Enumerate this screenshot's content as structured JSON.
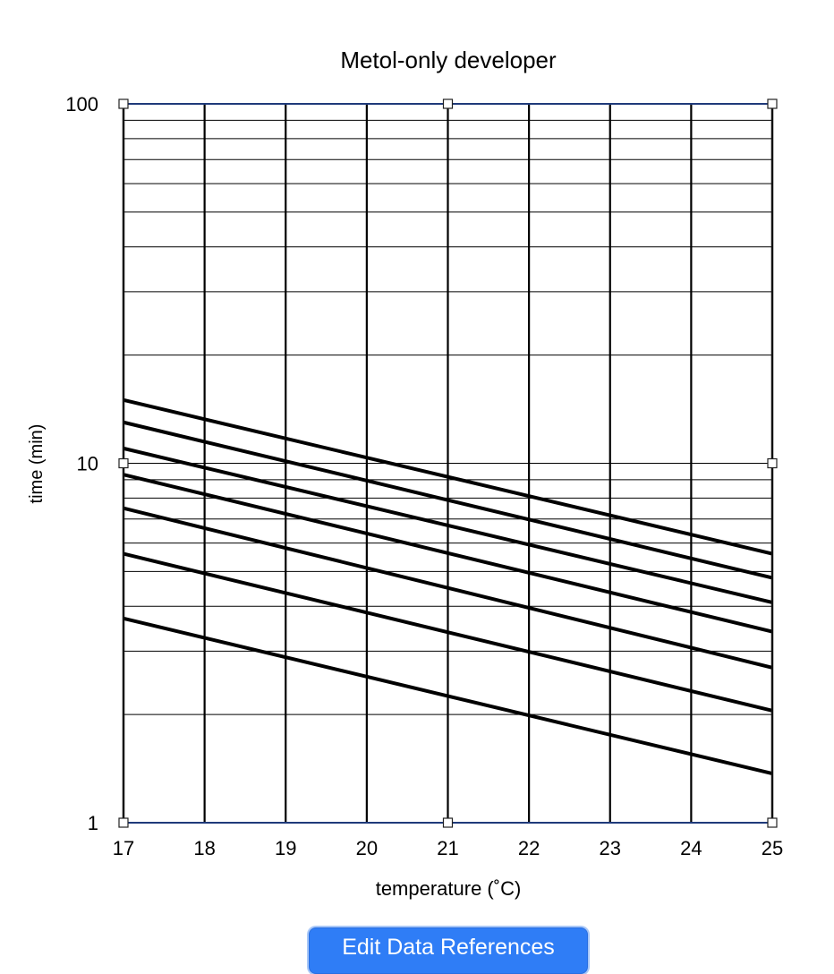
{
  "chart_data": {
    "type": "line",
    "title": "Metol-only developer",
    "xlabel": "temperature (˚C)",
    "ylabel": "time (min)",
    "x_ticks": [
      "17",
      "18",
      "19",
      "20",
      "21",
      "22",
      "23",
      "24",
      "25"
    ],
    "y_ticks": [
      "1",
      "10",
      "100"
    ],
    "xlim": [
      17,
      25
    ],
    "ylim": [
      1,
      100
    ],
    "y_scale": "log",
    "grid": true,
    "legend": "none",
    "series": [
      {
        "x": [
          17,
          25
        ],
        "y": [
          15.0,
          5.6
        ]
      },
      {
        "x": [
          17,
          25
        ],
        "y": [
          13.0,
          4.8
        ]
      },
      {
        "x": [
          17,
          25
        ],
        "y": [
          11.0,
          4.1
        ]
      },
      {
        "x": [
          17,
          25
        ],
        "y": [
          9.3,
          3.4
        ]
      },
      {
        "x": [
          17,
          25
        ],
        "y": [
          7.5,
          2.7
        ]
      },
      {
        "x": [
          17,
          25
        ],
        "y": [
          5.6,
          2.05
        ]
      },
      {
        "x": [
          17,
          25
        ],
        "y": [
          3.7,
          1.37
        ]
      }
    ],
    "colors": {
      "series": "#000000",
      "frame": "#1f3a7a",
      "grid": "#000000"
    }
  },
  "button": {
    "edit_label": "Edit Data References"
  }
}
